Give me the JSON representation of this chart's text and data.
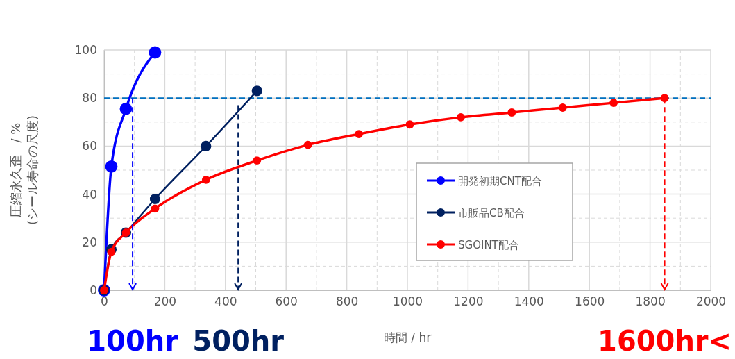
{
  "chart_data": {
    "type": "line",
    "xlabel": "時間 / hr",
    "ylabel": "圧縮永久歪　/ %\n(シール寿命の尺度)",
    "xlim": [
      0,
      2000
    ],
    "xticks": [
      0,
      200,
      400,
      600,
      800,
      1000,
      1200,
      1400,
      1600,
      1800,
      2000
    ],
    "ylim": [
      0,
      100
    ],
    "yticks": [
      0,
      20,
      40,
      60,
      80,
      100
    ],
    "grid": true,
    "legend": "right",
    "marker": "circle",
    "series": [
      {
        "name": "開発初期CNT配合",
        "color": "#0000ff",
        "x": [
          0,
          24,
          72,
          168
        ],
        "values": [
          0,
          51.5,
          75.5,
          99
        ]
      },
      {
        "name": "市販品CB配合",
        "color": "#002060",
        "x": [
          0,
          24,
          72,
          168,
          336,
          504
        ],
        "values": [
          0,
          17,
          24,
          38,
          60,
          83
        ]
      },
      {
        "name": "SGOINT配合",
        "color": "#ff0000",
        "x": [
          0,
          24,
          72,
          168,
          336,
          504,
          672,
          840,
          1008,
          1176,
          1344,
          1512,
          1680,
          1848
        ],
        "values": [
          0,
          16,
          24,
          34,
          46,
          54,
          60.5,
          65,
          69,
          72,
          74,
          76,
          78,
          80
        ]
      }
    ],
    "ref_lines": [
      {
        "axis": "y",
        "value": 80,
        "color": "#0070c0",
        "line_style": "dashed"
      }
    ],
    "annotations": [
      {
        "text": "100hr",
        "x": 94,
        "y": 80
      },
      {
        "text": "500hr",
        "x": 442,
        "y": 77
      },
      {
        "text": "1600hr<",
        "x": 1848,
        "y": 80
      }
    ]
  }
}
